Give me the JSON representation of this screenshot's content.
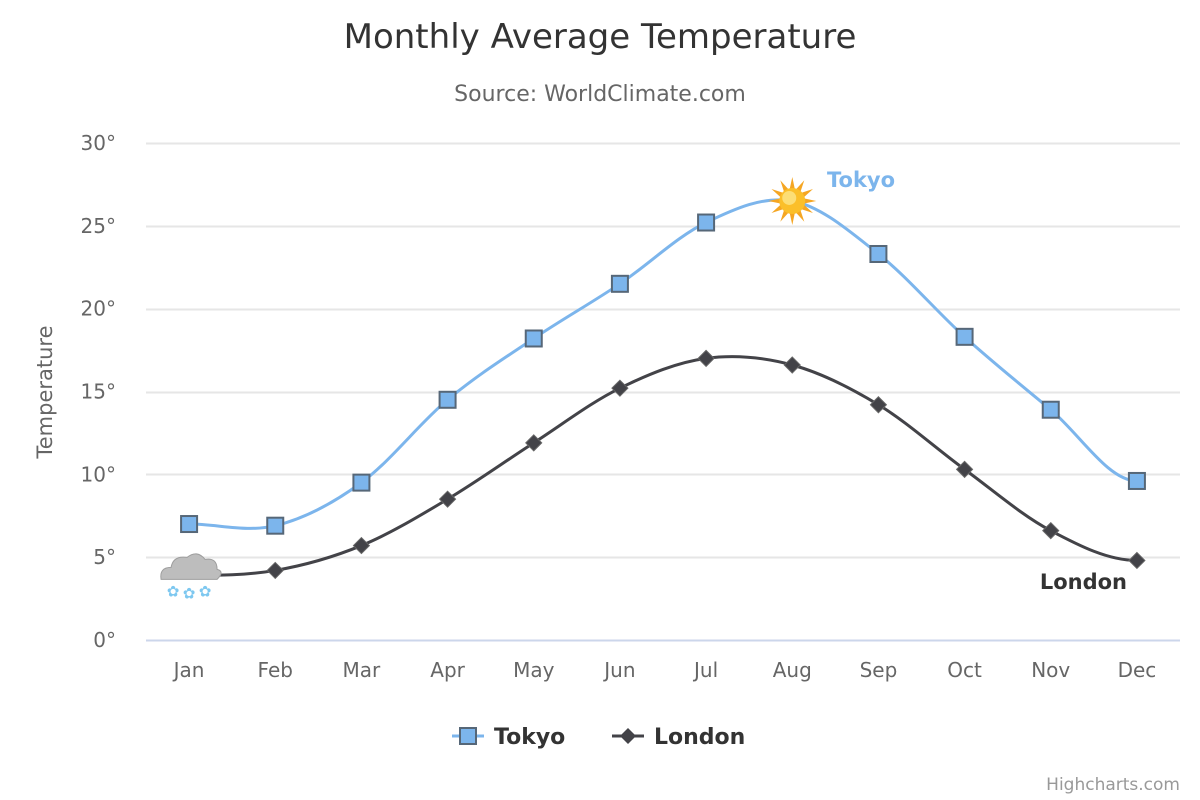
{
  "chart_data": {
    "type": "line",
    "title": "Monthly Average Temperature",
    "subtitle": "Source: WorldClimate.com",
    "xlabel": "",
    "ylabel": "Temperature",
    "categories": [
      "Jan",
      "Feb",
      "Mar",
      "Apr",
      "May",
      "Jun",
      "Jul",
      "Aug",
      "Sep",
      "Oct",
      "Nov",
      "Dec"
    ],
    "ylim": [
      0,
      30
    ],
    "yticks": [
      0,
      5,
      10,
      15,
      20,
      25,
      30
    ],
    "ytick_suffix": "°",
    "grid": true,
    "legend_position": "bottom-center",
    "series": [
      {
        "name": "Tokyo",
        "color": "#7cb5ec",
        "marker": "square",
        "values": [
          7.0,
          6.9,
          9.5,
          14.5,
          18.2,
          21.5,
          25.2,
          26.5,
          23.3,
          18.3,
          13.9,
          9.6
        ],
        "label": "Tokyo",
        "special_markers": [
          {
            "category": "Aug",
            "icon": "sun-icon"
          }
        ]
      },
      {
        "name": "London",
        "color": "#434348",
        "marker": "diamond",
        "values": [
          3.9,
          4.2,
          5.7,
          8.5,
          11.9,
          15.2,
          17.0,
          16.6,
          14.2,
          10.3,
          6.6,
          4.8
        ],
        "label": "London",
        "special_markers": [
          {
            "category": "Jan",
            "icon": "snow-cloud-icon"
          }
        ]
      }
    ]
  },
  "credits": "Highcharts.com"
}
